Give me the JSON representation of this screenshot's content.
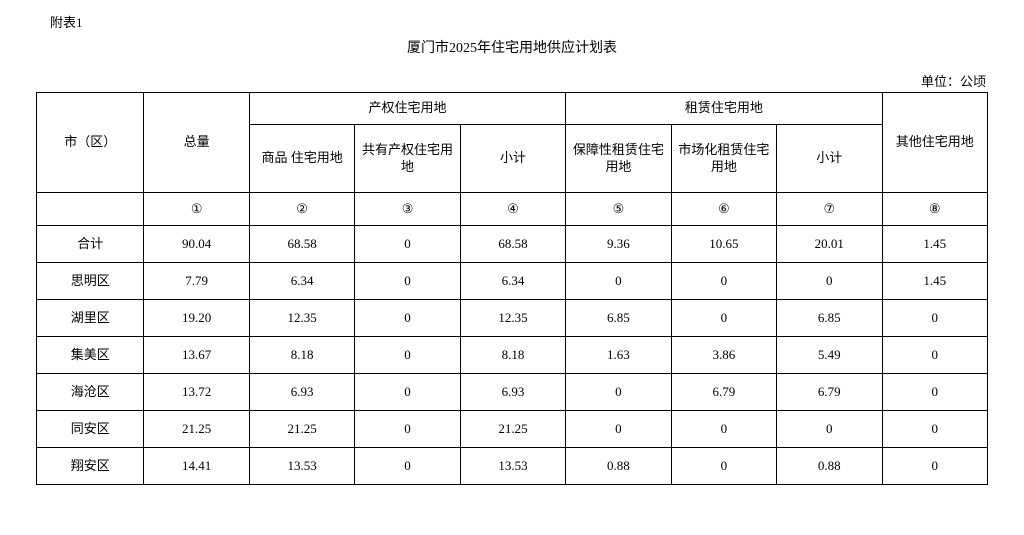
{
  "appendix": "附表1",
  "title": "厦门市2025年住宅用地供应计划表",
  "unit": "单位：公顷",
  "headers": {
    "district": "市（区）",
    "total": "总量",
    "property_group": "产权住宅用地",
    "rental_group": "租赁住宅用地",
    "other": "其他住宅用地",
    "commodity": "商品\n住宅用地",
    "shared": "共有产权住宅用地",
    "sub1": "小计",
    "guaranteed": "保障性租赁住宅用地",
    "market": "市场化租赁住宅用地",
    "sub2": "小计"
  },
  "circled": {
    "c1": "①",
    "c2": "②",
    "c3": "③",
    "c4": "④",
    "c5": "⑤",
    "c6": "⑥",
    "c7": "⑦",
    "c8": "⑧"
  },
  "rows": [
    {
      "name": "合计",
      "v1": "90.04",
      "v2": "68.58",
      "v3": "0",
      "v4": "68.58",
      "v5": "9.36",
      "v6": "10.65",
      "v7": "20.01",
      "v8": "1.45"
    },
    {
      "name": "思明区",
      "v1": "7.79",
      "v2": "6.34",
      "v3": "0",
      "v4": "6.34",
      "v5": "0",
      "v6": "0",
      "v7": "0",
      "v8": "1.45"
    },
    {
      "name": "湖里区",
      "v1": "19.20",
      "v2": "12.35",
      "v3": "0",
      "v4": "12.35",
      "v5": "6.85",
      "v6": "0",
      "v7": "6.85",
      "v8": "0"
    },
    {
      "name": "集美区",
      "v1": "13.67",
      "v2": "8.18",
      "v3": "0",
      "v4": "8.18",
      "v5": "1.63",
      "v6": "3.86",
      "v7": "5.49",
      "v8": "0"
    },
    {
      "name": "海沧区",
      "v1": "13.72",
      "v2": "6.93",
      "v3": "0",
      "v4": "6.93",
      "v5": "0",
      "v6": "6.79",
      "v7": "6.79",
      "v8": "0"
    },
    {
      "name": "同安区",
      "v1": "21.25",
      "v2": "21.25",
      "v3": "0",
      "v4": "21.25",
      "v5": "0",
      "v6": "0",
      "v7": "0",
      "v8": "0"
    },
    {
      "name": "翔安区",
      "v1": "14.41",
      "v2": "13.53",
      "v3": "0",
      "v4": "13.53",
      "v5": "0.88",
      "v6": "0",
      "v7": "0.88",
      "v8": "0"
    }
  ],
  "table_style": {
    "border_color": "#000000",
    "background_color": "#ffffff",
    "font_size": 13,
    "col_widths": {
      "first": 107,
      "std": 105
    }
  }
}
